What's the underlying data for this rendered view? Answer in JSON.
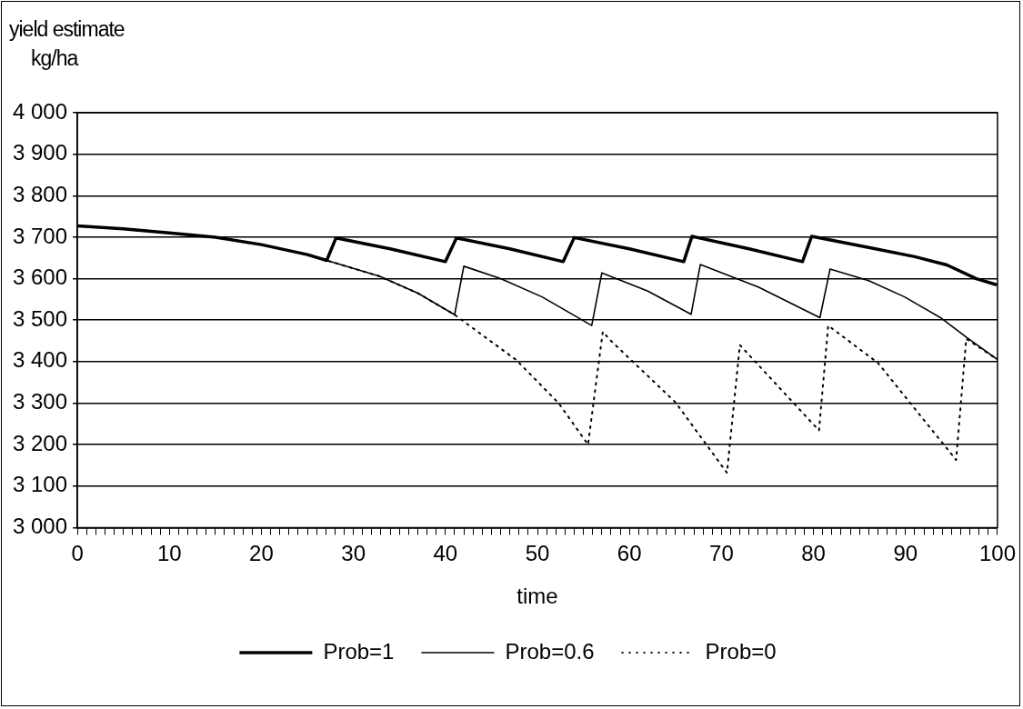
{
  "chart_data": {
    "type": "line",
    "xlabel": "time",
    "ylabel": "yield estimate kg/ha",
    "xlim": [
      0,
      100
    ],
    "ylim": [
      3000,
      4000
    ],
    "xticks": [
      {
        "value": 0,
        "label": "0"
      },
      {
        "value": 1,
        "label": null
      },
      {
        "value": 2,
        "label": null
      },
      {
        "value": 3,
        "label": null
      },
      {
        "value": 4,
        "label": null
      },
      {
        "value": 5,
        "label": null
      },
      {
        "value": 6,
        "label": null
      },
      {
        "value": 7,
        "label": null
      },
      {
        "value": 8,
        "label": null
      },
      {
        "value": 9,
        "label": null
      },
      {
        "value": 10,
        "label": "10"
      },
      {
        "value": 11,
        "label": null
      },
      {
        "value": 12,
        "label": null
      },
      {
        "value": 13,
        "label": null
      },
      {
        "value": 14,
        "label": null
      },
      {
        "value": 15,
        "label": null
      },
      {
        "value": 16,
        "label": null
      },
      {
        "value": 17,
        "label": null
      },
      {
        "value": 18,
        "label": null
      },
      {
        "value": 19,
        "label": null
      },
      {
        "value": 20,
        "label": "20"
      },
      {
        "value": 21,
        "label": null
      },
      {
        "value": 22,
        "label": null
      },
      {
        "value": 23,
        "label": null
      },
      {
        "value": 24,
        "label": null
      },
      {
        "value": 25,
        "label": null
      },
      {
        "value": 26,
        "label": null
      },
      {
        "value": 27,
        "label": null
      },
      {
        "value": 28,
        "label": null
      },
      {
        "value": 29,
        "label": null
      },
      {
        "value": 30,
        "label": "30"
      },
      {
        "value": 31,
        "label": null
      },
      {
        "value": 32,
        "label": null
      },
      {
        "value": 33,
        "label": null
      },
      {
        "value": 34,
        "label": null
      },
      {
        "value": 35,
        "label": null
      },
      {
        "value": 36,
        "label": null
      },
      {
        "value": 37,
        "label": null
      },
      {
        "value": 38,
        "label": null
      },
      {
        "value": 39,
        "label": null
      },
      {
        "value": 40,
        "label": "40"
      },
      {
        "value": 41,
        "label": null
      },
      {
        "value": 42,
        "label": null
      },
      {
        "value": 43,
        "label": null
      },
      {
        "value": 44,
        "label": null
      },
      {
        "value": 45,
        "label": null
      },
      {
        "value": 46,
        "label": null
      },
      {
        "value": 47,
        "label": null
      },
      {
        "value": 48,
        "label": null
      },
      {
        "value": 49,
        "label": null
      },
      {
        "value": 50,
        "label": "50"
      },
      {
        "value": 51,
        "label": null
      },
      {
        "value": 52,
        "label": null
      },
      {
        "value": 53,
        "label": null
      },
      {
        "value": 54,
        "label": null
      },
      {
        "value": 55,
        "label": null
      },
      {
        "value": 56,
        "label": null
      },
      {
        "value": 57,
        "label": null
      },
      {
        "value": 58,
        "label": null
      },
      {
        "value": 59,
        "label": null
      },
      {
        "value": 60,
        "label": "60"
      },
      {
        "value": 61,
        "label": null
      },
      {
        "value": 62,
        "label": null
      },
      {
        "value": 63,
        "label": null
      },
      {
        "value": 64,
        "label": null
      },
      {
        "value": 65,
        "label": null
      },
      {
        "value": 66,
        "label": null
      },
      {
        "value": 67,
        "label": null
      },
      {
        "value": 68,
        "label": null
      },
      {
        "value": 69,
        "label": null
      },
      {
        "value": 70,
        "label": "70"
      },
      {
        "value": 71,
        "label": null
      },
      {
        "value": 72,
        "label": null
      },
      {
        "value": 73,
        "label": null
      },
      {
        "value": 74,
        "label": null
      },
      {
        "value": 75,
        "label": null
      },
      {
        "value": 76,
        "label": null
      },
      {
        "value": 77,
        "label": null
      },
      {
        "value": 78,
        "label": null
      },
      {
        "value": 79,
        "label": null
      },
      {
        "value": 80,
        "label": "80"
      },
      {
        "value": 81,
        "label": null
      },
      {
        "value": 82,
        "label": null
      },
      {
        "value": 83,
        "label": null
      },
      {
        "value": 84,
        "label": null
      },
      {
        "value": 85,
        "label": null
      },
      {
        "value": 86,
        "label": null
      },
      {
        "value": 87,
        "label": null
      },
      {
        "value": 88,
        "label": null
      },
      {
        "value": 89,
        "label": null
      },
      {
        "value": 90,
        "label": "90"
      },
      {
        "value": 91,
        "label": null
      },
      {
        "value": 92,
        "label": null
      },
      {
        "value": 93,
        "label": null
      },
      {
        "value": 94,
        "label": null
      },
      {
        "value": 95,
        "label": null
      },
      {
        "value": 96,
        "label": null
      },
      {
        "value": 97,
        "label": null
      },
      {
        "value": 98,
        "label": null
      },
      {
        "value": 99,
        "label": null
      },
      {
        "value": 100,
        "label": "100"
      }
    ],
    "yticks": [
      {
        "value": 3000,
        "label": "3 000"
      },
      {
        "value": 3100,
        "label": "3 100"
      },
      {
        "value": 3200,
        "label": "3 200"
      },
      {
        "value": 3300,
        "label": "3 300"
      },
      {
        "value": 3400,
        "label": "3 400"
      },
      {
        "value": 3500,
        "label": "3 500"
      },
      {
        "value": 3600,
        "label": "3 600"
      },
      {
        "value": 3700,
        "label": "3 700"
      },
      {
        "value": 3800,
        "label": "3 800"
      },
      {
        "value": 3900,
        "label": "3 900"
      },
      {
        "value": 4000,
        "label": "4 000"
      }
    ],
    "grid": "y",
    "legend": "bottom",
    "marker": "none",
    "series": [
      {
        "name": "Prob=1",
        "color": "#000000",
        "line_style": "solid",
        "x": [
          0,
          5,
          10,
          15,
          20,
          25,
          27.1,
          28.1,
          34,
          40,
          41.2,
          47,
          52.8,
          54,
          60,
          65.9,
          66.8,
          73,
          78.8,
          79.8,
          86,
          91,
          94.5,
          97.7,
          99.8
        ],
        "values": [
          3727,
          3720,
          3710,
          3700,
          3682,
          3658,
          3644,
          3698,
          3672,
          3641,
          3698,
          3672,
          3641,
          3699,
          3672,
          3641,
          3702,
          3672,
          3641,
          3702,
          3675,
          3653,
          3633,
          3600,
          3586
        ]
      },
      {
        "name": "Prob=0.6",
        "color": "#000000",
        "line_style": "solid",
        "x": [
          0,
          5,
          10,
          15,
          20,
          25,
          27.1,
          32.8,
          37,
          41,
          42,
          46,
          50.5,
          55.9,
          57,
          62,
          66.7,
          67.7,
          74,
          80.7,
          81.8,
          86,
          89.9,
          93.8,
          96.6,
          100
        ],
        "values": [
          3727,
          3720,
          3710,
          3700,
          3682,
          3658,
          3644,
          3606,
          3565,
          3513,
          3630,
          3600,
          3556,
          3487,
          3614,
          3570,
          3514,
          3634,
          3580,
          3506,
          3623,
          3595,
          3556,
          3506,
          3459,
          3405
        ]
      },
      {
        "name": "Prob=0",
        "color": "#000000",
        "line_style": "dotted",
        "x": [
          0,
          5,
          10,
          15,
          20,
          25,
          27.1,
          32.8,
          37,
          41,
          47.7,
          52.3,
          55.5,
          57.1,
          58,
          65,
          70.6,
          72,
          80.6,
          81.6,
          87,
          95.5,
          96.6,
          100
        ],
        "values": [
          3727,
          3720,
          3710,
          3700,
          3682,
          3658,
          3644,
          3606,
          3565,
          3513,
          3404,
          3300,
          3200,
          3472,
          3450,
          3302,
          3132,
          3440,
          3234,
          3487,
          3397,
          3163,
          3455,
          3405
        ]
      }
    ]
  }
}
